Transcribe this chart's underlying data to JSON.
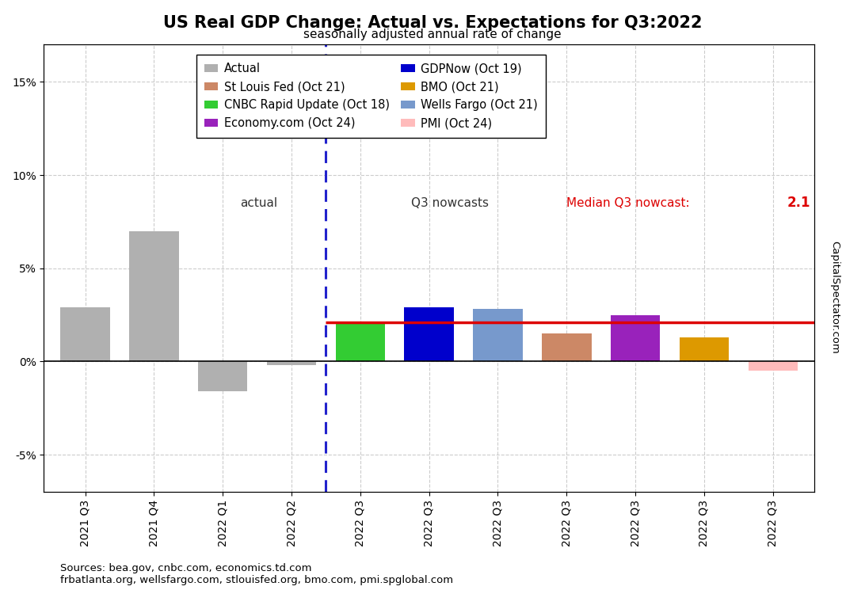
{
  "title": "US Real GDP Change: Actual vs. Expectations for Q3:2022",
  "subtitle": "seasonally adjusted annual rate of change",
  "ylabel_right": "CapitalSpectator.com",
  "source_text": "Sources: bea.gov, cnbc.com, economics.td.com\nfrbatlanta.org, wellsfargo.com, stlouisfed.org, bmo.com, pmi.spglobal.com",
  "bars": [
    {
      "label": "2021 Q3",
      "value": 2.9,
      "color": "#b0b0b0"
    },
    {
      "label": "2021 Q4",
      "value": 7.0,
      "color": "#b0b0b0"
    },
    {
      "label": "2022 Q1",
      "value": -1.6,
      "color": "#b0b0b0"
    },
    {
      "label": "2022 Q2",
      "value": -0.2,
      "color": "#b0b0b0"
    },
    {
      "label": "2022 Q3 CNBC",
      "value": 2.1,
      "color": "#33cc33"
    },
    {
      "label": "2022 Q3 GDPNow",
      "value": 2.9,
      "color": "#0000cc"
    },
    {
      "label": "2022 Q3 Wells",
      "value": 2.8,
      "color": "#7799cc"
    },
    {
      "label": "2022 Q3 StL",
      "value": 1.5,
      "color": "#cc8866"
    },
    {
      "label": "2022 Q3 Eco",
      "value": 2.5,
      "color": "#9922bb"
    },
    {
      "label": "2022 Q3 BMO",
      "value": 1.3,
      "color": "#dd9900"
    },
    {
      "label": "2022 Q3 PMI",
      "value": -0.5,
      "color": "#ffbbbb"
    }
  ],
  "x_labels": [
    "2021 Q3",
    "2021 Q4",
    "2022 Q1",
    "2022 Q2",
    "2022 Q3",
    "2022 Q3",
    "2022 Q3",
    "2022 Q3",
    "2022 Q3",
    "2022 Q3",
    "2022 Q3"
  ],
  "median_nowcast": 2.1,
  "median_line_color": "#dd0000",
  "ylim": [
    -7,
    17
  ],
  "yticks": [
    -5,
    0,
    5,
    10,
    15
  ],
  "ytick_labels": [
    "-5%",
    "0%",
    "5%",
    "10%",
    "15%"
  ],
  "dashed_line_color": "#2222cc",
  "actual_label": "actual",
  "nowcasts_label": "Q3 nowcasts",
  "median_label": "Median Q3 nowcast:",
  "median_value_label": "2.1",
  "legend_entries": [
    {
      "label": "Actual",
      "color": "#b0b0b0"
    },
    {
      "label": "St Louis Fed (Oct 21)",
      "color": "#cc8866"
    },
    {
      "label": "CNBC Rapid Update (Oct 18)",
      "color": "#33cc33"
    },
    {
      "label": "Economy.com (Oct 24)",
      "color": "#9922bb"
    },
    {
      "label": "GDPNow (Oct 19)",
      "color": "#0000cc"
    },
    {
      "label": "BMO (Oct 21)",
      "color": "#dd9900"
    },
    {
      "label": "Wells Fargo (Oct 21)",
      "color": "#7799cc"
    },
    {
      "label": "PMI (Oct 24)",
      "color": "#ffbbbb"
    }
  ],
  "background_color": "#ffffff",
  "grid_color": "#cccccc",
  "title_fontsize": 15,
  "subtitle_fontsize": 11,
  "axis_fontsize": 10,
  "legend_fontsize": 10.5
}
